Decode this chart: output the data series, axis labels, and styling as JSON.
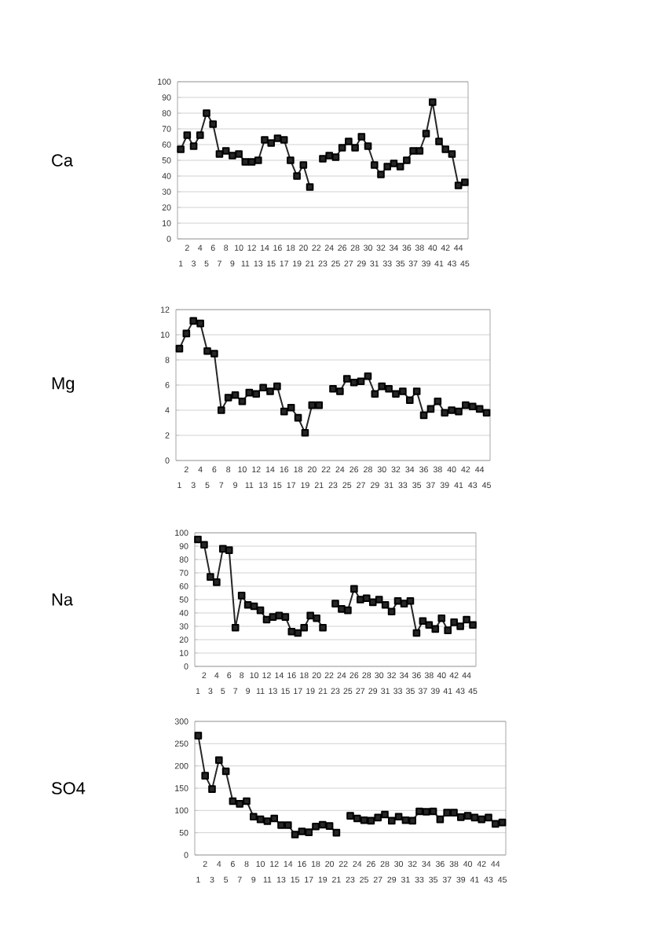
{
  "chart_data": [
    {
      "type": "line",
      "ylabel": "Ca",
      "categories": [
        "1",
        "2",
        "3",
        "4",
        "5",
        "6",
        "7",
        "8",
        "9",
        "10",
        "11",
        "12",
        "13",
        "14",
        "15",
        "16",
        "17",
        "18",
        "19",
        "20",
        "21",
        "22",
        "23",
        "24",
        "25",
        "26",
        "27",
        "28",
        "29",
        "30",
        "31",
        "32",
        "33",
        "34",
        "35",
        "36",
        "37",
        "38",
        "39",
        "40",
        "41",
        "42",
        "43",
        "44",
        "45"
      ],
      "values": [
        57,
        66,
        59,
        66,
        80,
        73,
        54,
        56,
        53,
        54,
        49,
        49,
        50,
        63,
        61,
        64,
        63,
        50,
        40,
        47,
        33,
        null,
        51,
        53,
        52,
        58,
        62,
        58,
        65,
        59,
        47,
        41,
        46,
        48,
        46,
        50,
        56,
        56,
        67,
        87,
        62,
        57,
        54,
        34,
        36
      ],
      "color": "#262626",
      "ylim": [
        0,
        100
      ],
      "yticks": [
        0,
        10,
        20,
        30,
        40,
        50,
        60,
        70,
        80,
        90,
        100
      ],
      "grid": "y",
      "marker": "square",
      "line_style": "solid"
    },
    {
      "type": "line",
      "ylabel": "Mg",
      "categories": [
        "1",
        "2",
        "3",
        "4",
        "5",
        "6",
        "7",
        "8",
        "9",
        "10",
        "11",
        "12",
        "13",
        "14",
        "15",
        "16",
        "17",
        "18",
        "19",
        "20",
        "21",
        "22",
        "23",
        "24",
        "25",
        "26",
        "27",
        "28",
        "29",
        "30",
        "31",
        "32",
        "33",
        "34",
        "35",
        "36",
        "37",
        "38",
        "39",
        "40",
        "41",
        "42",
        "43",
        "44",
        "45"
      ],
      "values": [
        8.9,
        10.1,
        11.1,
        10.9,
        8.7,
        8.5,
        4.0,
        5.0,
        5.2,
        4.7,
        5.4,
        5.3,
        5.8,
        5.5,
        5.9,
        3.9,
        4.2,
        3.4,
        2.2,
        4.4,
        4.4,
        null,
        5.7,
        5.5,
        6.5,
        6.2,
        6.3,
        6.7,
        5.3,
        5.9,
        5.7,
        5.3,
        5.5,
        4.8,
        5.5,
        3.6,
        4.1,
        4.7,
        3.8,
        4.0,
        3.9,
        4.4,
        4.3,
        4.1,
        3.8
      ],
      "color": "#262626",
      "ylim": [
        0,
        12
      ],
      "yticks": [
        0,
        2,
        4,
        6,
        8,
        10,
        12
      ],
      "grid": "y",
      "marker": "square",
      "line_style": "solid"
    },
    {
      "type": "line",
      "ylabel": "Na",
      "categories": [
        "1",
        "2",
        "3",
        "4",
        "5",
        "6",
        "7",
        "8",
        "9",
        "10",
        "11",
        "12",
        "13",
        "14",
        "15",
        "16",
        "17",
        "18",
        "19",
        "20",
        "21",
        "22",
        "23",
        "24",
        "25",
        "26",
        "27",
        "28",
        "29",
        "30",
        "31",
        "32",
        "33",
        "34",
        "35",
        "36",
        "37",
        "38",
        "39",
        "40",
        "41",
        "42",
        "43",
        "44",
        "45"
      ],
      "values": [
        95,
        91,
        67,
        63,
        88,
        87,
        29,
        53,
        46,
        45,
        42,
        35,
        37,
        38,
        37,
        26,
        25,
        29,
        38,
        36,
        29,
        null,
        47,
        43,
        42,
        58,
        50,
        51,
        48,
        50,
        46,
        41,
        49,
        47,
        49,
        25,
        34,
        31,
        28,
        36,
        27,
        33,
        30,
        35,
        31
      ],
      "color": "#262626",
      "ylim": [
        0,
        100
      ],
      "yticks": [
        0,
        10,
        20,
        30,
        40,
        50,
        60,
        70,
        80,
        90,
        100
      ],
      "grid": "y",
      "marker": "square",
      "line_style": "solid"
    },
    {
      "type": "line",
      "ylabel": "SO4",
      "categories": [
        "1",
        "2",
        "3",
        "4",
        "5",
        "6",
        "7",
        "8",
        "9",
        "10",
        "11",
        "12",
        "13",
        "14",
        "15",
        "16",
        "17",
        "18",
        "19",
        "20",
        "21",
        "22",
        "23",
        "24",
        "25",
        "26",
        "27",
        "28",
        "29",
        "30",
        "31",
        "32",
        "33",
        "34",
        "35",
        "36",
        "37",
        "38",
        "39",
        "40",
        "41",
        "42",
        "43",
        "44",
        "45"
      ],
      "values": [
        268,
        178,
        148,
        213,
        188,
        121,
        115,
        121,
        86,
        80,
        76,
        82,
        67,
        67,
        46,
        53,
        51,
        64,
        68,
        65,
        50,
        null,
        88,
        82,
        78,
        77,
        84,
        91,
        77,
        86,
        78,
        77,
        98,
        97,
        98,
        80,
        95,
        95,
        85,
        88,
        84,
        80,
        84,
        70,
        73
      ],
      "color": "#262626",
      "ylim": [
        0,
        300
      ],
      "yticks": [
        0,
        50,
        100,
        150,
        200,
        250,
        300
      ],
      "grid": "y",
      "marker": "square",
      "line_style": "solid"
    }
  ]
}
